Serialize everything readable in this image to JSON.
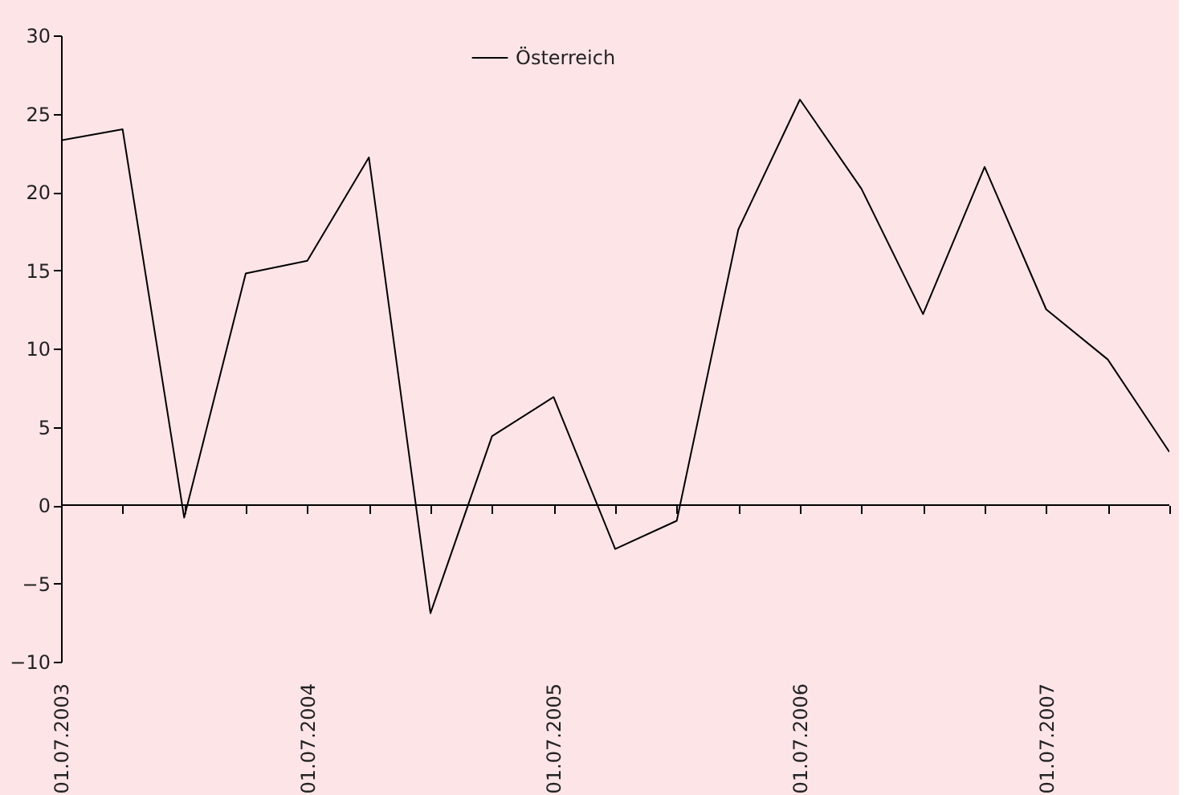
{
  "chart_data": {
    "type": "line",
    "categories": [
      "01.07.2003",
      null,
      null,
      null,
      "01.07.2004",
      null,
      null,
      null,
      "01.07.2005",
      null,
      null,
      null,
      "01.07.2006",
      null,
      null,
      null,
      "01.07.2007",
      null,
      null
    ],
    "series": [
      {
        "name": "Österreich",
        "color": "#000000",
        "values": [
          23.3,
          24.0,
          -0.8,
          14.8,
          15.6,
          22.2,
          -6.9,
          4.4,
          6.9,
          -2.8,
          -1.0,
          17.6,
          25.9,
          20.2,
          12.2,
          21.6,
          12.5,
          9.3,
          3.4
        ]
      }
    ],
    "ylim": [
      -10,
      30
    ],
    "yticks": [
      -10,
      -5,
      0,
      5,
      10,
      15,
      20,
      25,
      30
    ],
    "ref_lines": [
      {
        "axis": "y",
        "value": 0,
        "color": "#000000",
        "line_style": "solid"
      }
    ],
    "grid": false,
    "legend": "top",
    "marker": "none",
    "line_style": "solid"
  }
}
